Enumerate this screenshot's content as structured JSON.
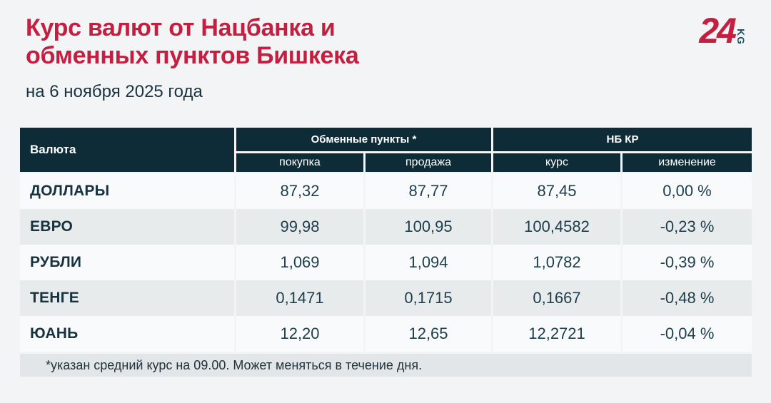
{
  "page": {
    "title_line1": "Курс валют от Нацбанка и",
    "title_line2": "обменных пунктов Бишкека",
    "subtitle": "на 6 ноября 2025 года",
    "footnote": "*указан средний курс на 09.00. Может меняться в течение дня."
  },
  "logo": {
    "number": "24",
    "suffix": "KG"
  },
  "colors": {
    "brand_red": "#c41f41",
    "header_dark": "#0d2c38",
    "text_dark": "#16333f",
    "row_light": "#f8fafb",
    "row_gray": "#e8ebec",
    "footer_band": "#e3e6e8",
    "page_bg": "#f2f4f6",
    "logo_kg_teal": "#185365"
  },
  "table": {
    "col_currency": "Валюта",
    "group_exchange": "Обменные пункты *",
    "group_nbkr": "НБ КР",
    "sub_buy": "покупка",
    "sub_sell": "продажа",
    "sub_rate": "курс",
    "sub_change": "изменение",
    "rows": [
      {
        "currency": "ДОЛЛАРЫ",
        "buy": "87,32",
        "sell": "87,77",
        "rate": "87,45",
        "change": "0,00 %"
      },
      {
        "currency": "ЕВРО",
        "buy": "99,98",
        "sell": "100,95",
        "rate": "100,4582",
        "change": "-0,23 %"
      },
      {
        "currency": "РУБЛИ",
        "buy": "1,069",
        "sell": "1,094",
        "rate": "1,0782",
        "change": "-0,39 %"
      },
      {
        "currency": "ТЕНГЕ",
        "buy": "0,1471",
        "sell": "0,1715",
        "rate": "0,1667",
        "change": "-0,48 %"
      },
      {
        "currency": "ЮАНЬ",
        "buy": "12,20",
        "sell": "12,65",
        "rate": "12,2721",
        "change": "-0,04 %"
      }
    ]
  },
  "chart_data": {
    "type": "table",
    "title": "Курс валют от Нацбанка и обменных пунктов Бишкека",
    "subtitle": "на 6 ноября 2025 года",
    "column_groups": [
      "Валюта",
      "Обменные пункты *",
      "НБ КР"
    ],
    "columns": [
      "Валюта",
      "покупка",
      "продажа",
      "курс",
      "изменение"
    ],
    "rows": [
      [
        "ДОЛЛАРЫ",
        "87,32",
        "87,77",
        "87,45",
        "0,00 %"
      ],
      [
        "ЕВРО",
        "99,98",
        "100,95",
        "100,4582",
        "-0,23 %"
      ],
      [
        "РУБЛИ",
        "1,069",
        "1,094",
        "1,0782",
        "-0,39 %"
      ],
      [
        "ТЕНГЕ",
        "0,1471",
        "0,1715",
        "0,1667",
        "-0,48 %"
      ],
      [
        "ЮАНЬ",
        "12,20",
        "12,65",
        "12,2721",
        "-0,04 %"
      ]
    ],
    "footnote": "*указан средний курс на 09.00. Может меняться в течение дня."
  }
}
